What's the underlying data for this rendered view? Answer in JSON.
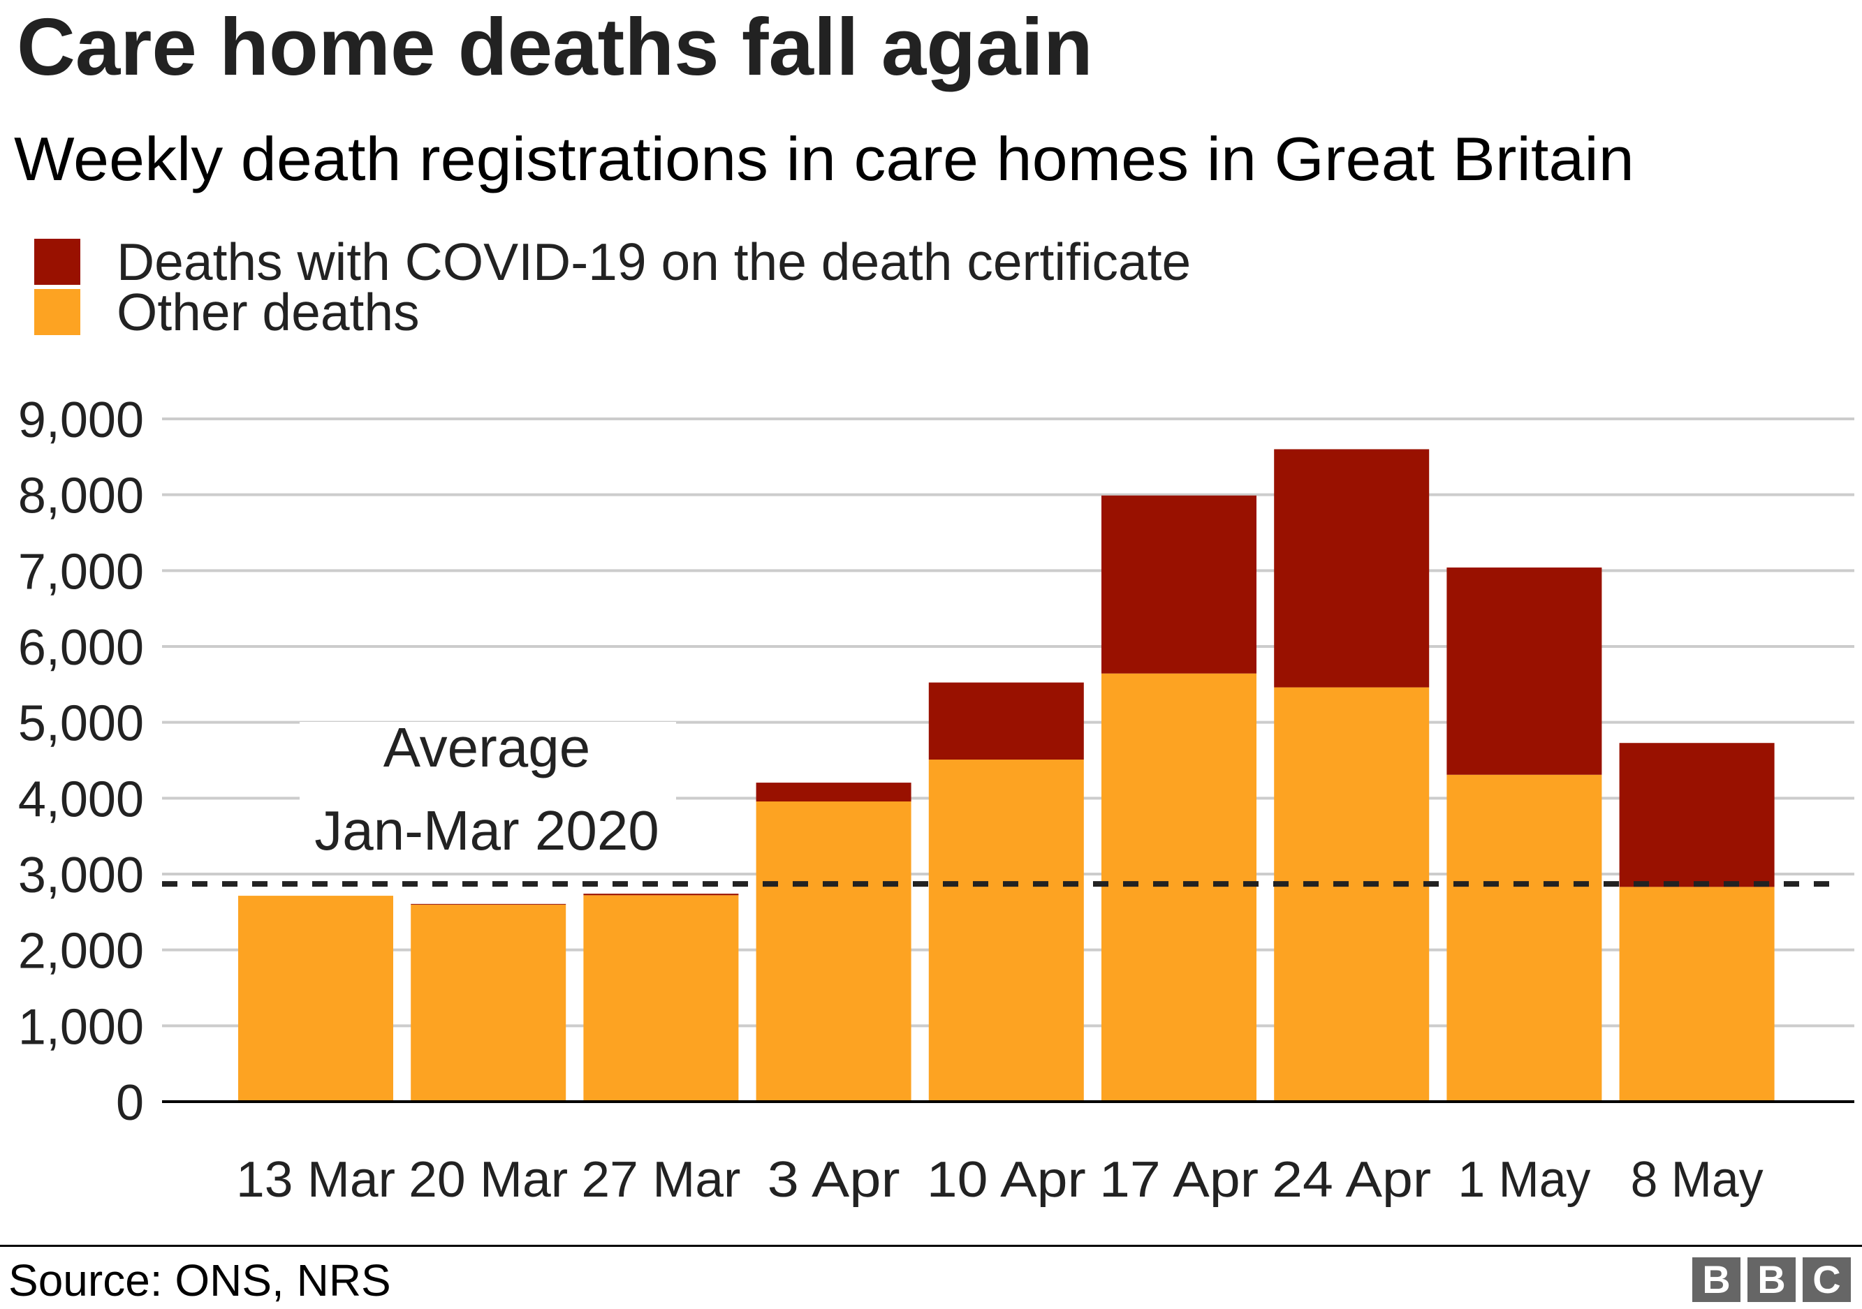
{
  "header": {
    "title": "Care home deaths fall again",
    "subtitle": "Weekly death registrations in care homes in Great Britain"
  },
  "legend": [
    {
      "label": "Deaths with COVID-19 on the death certificate",
      "color": "#991100"
    },
    {
      "label": "Other deaths",
      "color": "#FDA322"
    }
  ],
  "annotation": {
    "line1": "Average",
    "line2": "Jan-Mar 2020",
    "value": 2870
  },
  "footer": {
    "source": "Source: ONS, NRS",
    "logo": [
      "B",
      "B",
      "C"
    ]
  },
  "chart_data": {
    "type": "bar",
    "stacked": true,
    "title": "Care home deaths fall again",
    "subtitle": "Weekly death registrations in care homes in Great Britain",
    "xlabel": "",
    "ylabel": "",
    "ylim": [
      0,
      9000
    ],
    "yticks": [
      0,
      1000,
      2000,
      3000,
      4000,
      5000,
      6000,
      7000,
      8000,
      9000
    ],
    "ytick_labels": [
      "0",
      "1,000",
      "2,000",
      "3,000",
      "4,000",
      "5,000",
      "6,000",
      "7,000",
      "8,000",
      "9,000"
    ],
    "grid": true,
    "legend_position": "top-left",
    "categories": [
      "13 Mar",
      "20 Mar",
      "27 Mar",
      "3 Apr",
      "10 Apr",
      "17 Apr",
      "24 Apr",
      "1 May",
      "8 May"
    ],
    "series": [
      {
        "name": "Other deaths",
        "color": "#FDA322",
        "values": [
          2714,
          2596,
          2721,
          3957,
          4509,
          5644,
          5461,
          4309,
          2831
        ]
      },
      {
        "name": "Deaths with COVID-19 on the death certificate",
        "color": "#991100",
        "values": [
          0,
          10,
          20,
          248,
          1016,
          2346,
          3139,
          2732,
          1897
        ]
      }
    ],
    "reference_line": {
      "label": "Average Jan-Mar 2020",
      "value": 2870,
      "style": "dashed",
      "color": "#222222"
    }
  }
}
